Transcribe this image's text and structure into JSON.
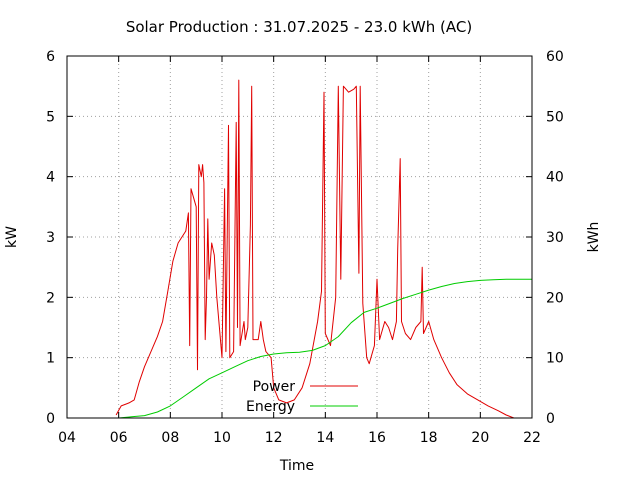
{
  "chart_data": {
    "type": "line",
    "title": "Solar Production : 31.07.2025 - 23.0 kWh (AC)",
    "xlabel": "Time",
    "ylabel": "kW",
    "y2label": "kWh",
    "xlim": [
      4,
      22
    ],
    "ylim": [
      0,
      6
    ],
    "y2lim": [
      0,
      60
    ],
    "x_ticks": [
      "04",
      "06",
      "08",
      "10",
      "12",
      "14",
      "16",
      "18",
      "20",
      "22"
    ],
    "y_ticks": [
      "0",
      "1",
      "2",
      "3",
      "4",
      "5",
      "6"
    ],
    "y2_ticks": [
      "0",
      "10",
      "20",
      "30",
      "40",
      "50",
      "60"
    ],
    "grid": true,
    "legend_position": "bottom-center",
    "series": [
      {
        "name": "Power",
        "axis": "left",
        "color": "#e00000",
        "points": [
          [
            5.9,
            0.05
          ],
          [
            6.1,
            0.2
          ],
          [
            6.4,
            0.25
          ],
          [
            6.6,
            0.3
          ],
          [
            6.8,
            0.6
          ],
          [
            7.0,
            0.85
          ],
          [
            7.2,
            1.05
          ],
          [
            7.5,
            1.35
          ],
          [
            7.7,
            1.6
          ],
          [
            7.9,
            2.1
          ],
          [
            8.1,
            2.6
          ],
          [
            8.3,
            2.9
          ],
          [
            8.6,
            3.1
          ],
          [
            8.7,
            3.4
          ],
          [
            8.75,
            1.2
          ],
          [
            8.8,
            3.8
          ],
          [
            9.0,
            3.5
          ],
          [
            9.05,
            0.8
          ],
          [
            9.1,
            4.2
          ],
          [
            9.2,
            4.0
          ],
          [
            9.25,
            4.2
          ],
          [
            9.3,
            3.9
          ],
          [
            9.35,
            1.3
          ],
          [
            9.4,
            2.0
          ],
          [
            9.45,
            3.3
          ],
          [
            9.5,
            2.3
          ],
          [
            9.6,
            2.9
          ],
          [
            9.7,
            2.7
          ],
          [
            9.8,
            2.0
          ],
          [
            9.9,
            1.5
          ],
          [
            10.0,
            1.0
          ],
          [
            10.1,
            3.8
          ],
          [
            10.15,
            1.1
          ],
          [
            10.25,
            4.85
          ],
          [
            10.3,
            1.0
          ],
          [
            10.45,
            1.1
          ],
          [
            10.55,
            4.9
          ],
          [
            10.6,
            1.5
          ],
          [
            10.65,
            5.6
          ],
          [
            10.7,
            1.2
          ],
          [
            10.85,
            1.6
          ],
          [
            10.9,
            1.3
          ],
          [
            11.0,
            1.5
          ],
          [
            11.1,
            3.2
          ],
          [
            11.15,
            5.5
          ],
          [
            11.2,
            1.3
          ],
          [
            11.4,
            1.3
          ],
          [
            11.5,
            1.6
          ],
          [
            11.6,
            1.3
          ],
          [
            11.7,
            1.1
          ],
          [
            11.9,
            1.0
          ],
          [
            12.0,
            0.5
          ],
          [
            12.2,
            0.3
          ],
          [
            12.5,
            0.25
          ],
          [
            12.8,
            0.3
          ],
          [
            13.1,
            0.5
          ],
          [
            13.4,
            0.9
          ],
          [
            13.7,
            1.6
          ],
          [
            13.85,
            2.1
          ],
          [
            13.95,
            5.4
          ],
          [
            14.0,
            1.4
          ],
          [
            14.2,
            1.2
          ],
          [
            14.4,
            2.0
          ],
          [
            14.5,
            5.5
          ],
          [
            14.6,
            2.3
          ],
          [
            14.7,
            5.5
          ],
          [
            14.9,
            5.4
          ],
          [
            15.1,
            5.45
          ],
          [
            15.2,
            5.5
          ],
          [
            15.3,
            2.4
          ],
          [
            15.35,
            5.5
          ],
          [
            15.45,
            1.9
          ],
          [
            15.6,
            1.0
          ],
          [
            15.7,
            0.9
          ],
          [
            15.9,
            1.2
          ],
          [
            16.0,
            2.3
          ],
          [
            16.1,
            1.3
          ],
          [
            16.3,
            1.6
          ],
          [
            16.45,
            1.5
          ],
          [
            16.6,
            1.3
          ],
          [
            16.75,
            1.6
          ],
          [
            16.8,
            2.8
          ],
          [
            16.9,
            4.3
          ],
          [
            16.95,
            1.6
          ],
          [
            17.1,
            1.4
          ],
          [
            17.3,
            1.3
          ],
          [
            17.5,
            1.5
          ],
          [
            17.7,
            1.6
          ],
          [
            17.75,
            2.5
          ],
          [
            17.8,
            1.4
          ],
          [
            18.0,
            1.6
          ],
          [
            18.2,
            1.3
          ],
          [
            18.5,
            1.0
          ],
          [
            18.8,
            0.75
          ],
          [
            19.1,
            0.55
          ],
          [
            19.5,
            0.4
          ],
          [
            19.9,
            0.3
          ],
          [
            20.3,
            0.2
          ],
          [
            20.7,
            0.12
          ],
          [
            21.0,
            0.05
          ],
          [
            21.3,
            0.0
          ]
        ]
      },
      {
        "name": "Energy",
        "axis": "right",
        "color": "#00cc00",
        "points": [
          [
            6.0,
            0.0
          ],
          [
            6.5,
            0.2
          ],
          [
            7.0,
            0.4
          ],
          [
            7.5,
            1.0
          ],
          [
            8.0,
            2.0
          ],
          [
            8.5,
            3.5
          ],
          [
            9.0,
            5.0
          ],
          [
            9.5,
            6.5
          ],
          [
            10.0,
            7.5
          ],
          [
            10.5,
            8.5
          ],
          [
            11.0,
            9.5
          ],
          [
            11.5,
            10.2
          ],
          [
            12.0,
            10.6
          ],
          [
            12.5,
            10.8
          ],
          [
            13.0,
            10.9
          ],
          [
            13.5,
            11.2
          ],
          [
            14.0,
            12.0
          ],
          [
            14.5,
            13.5
          ],
          [
            15.0,
            15.8
          ],
          [
            15.5,
            17.5
          ],
          [
            16.0,
            18.2
          ],
          [
            16.5,
            19.0
          ],
          [
            17.0,
            19.8
          ],
          [
            17.5,
            20.5
          ],
          [
            18.0,
            21.2
          ],
          [
            18.5,
            21.8
          ],
          [
            19.0,
            22.3
          ],
          [
            19.5,
            22.6
          ],
          [
            20.0,
            22.8
          ],
          [
            20.5,
            22.9
          ],
          [
            21.0,
            23.0
          ],
          [
            22.0,
            23.0
          ]
        ]
      }
    ]
  }
}
